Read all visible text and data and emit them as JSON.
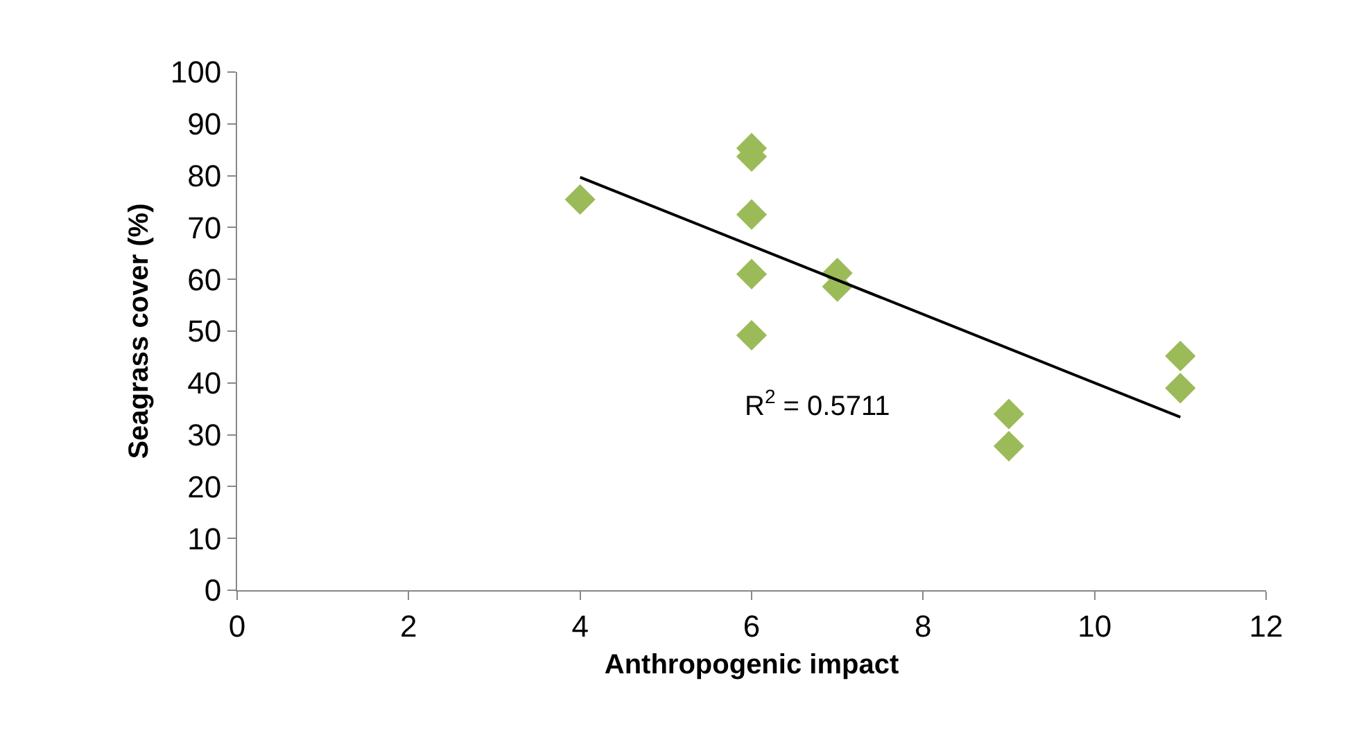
{
  "chart_data": {
    "type": "scatter",
    "xlabel": "Anthropogenic impact",
    "ylabel": "Seagrass cover (%)",
    "x": [
      4,
      6,
      6,
      6,
      6,
      6,
      7,
      7,
      9,
      9,
      11,
      11
    ],
    "series": [
      {
        "color": "#9bbb59",
        "marker": "diamond",
        "values": [
          75.4,
          85.3,
          83.7,
          72.5,
          61,
          49.2,
          61.2,
          58.6,
          34,
          27.8,
          45.2,
          39
        ]
      },
      {
        "type": "line",
        "color": "#000000",
        "x": [
          4,
          11
        ],
        "values": [
          79.7,
          33.4
        ],
        "marker": "none"
      }
    ],
    "xlim": [
      0,
      12
    ],
    "xticks": [
      0,
      2,
      4,
      6,
      8,
      10,
      12
    ],
    "ylim": [
      0,
      100
    ],
    "yticks": [
      0,
      10,
      20,
      30,
      40,
      50,
      60,
      70,
      80,
      90,
      100
    ],
    "annotations": [
      "R$^{2}$ = 0.5711"
    ]
  }
}
